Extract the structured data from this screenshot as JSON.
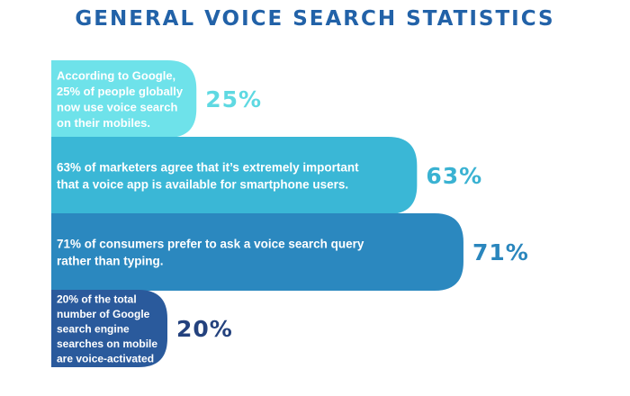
{
  "chart_data": {
    "type": "bar",
    "orientation": "horizontal",
    "title": "GENERAL VOICE SEARCH STATISTICS",
    "bars": [
      {
        "value": 25,
        "label": "25%",
        "text": [
          "According to Google,",
          "25% of people globally",
          "now use voice search",
          "on their mobiles."
        ],
        "color": "#6ee2ea",
        "label_color": "#5fd9e2"
      },
      {
        "value": 63,
        "label": "63%",
        "text": [
          "63% of marketers agree that it’s extremely important",
          "that a voice app is available for smartphone users."
        ],
        "color": "#3ab7d6",
        "label_color": "#3ab2d2"
      },
      {
        "value": 71,
        "label": "71%",
        "text": [
          "71% of consumers prefer to ask a voice search query",
          "rather than typing."
        ],
        "color": "#2b88bf",
        "label_color": "#2a86bd"
      },
      {
        "value": 20,
        "label": "20%",
        "text": [
          "20% of the total",
          "number of Google",
          "search engine",
          "searches on mobile",
          "are voice-activated"
        ],
        "color": "#2a5a9c",
        "label_color": "#24427e"
      }
    ]
  }
}
